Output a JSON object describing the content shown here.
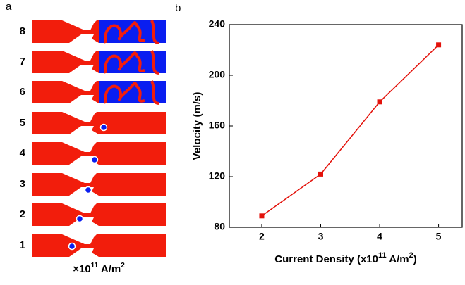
{
  "panel_a": {
    "label": "a",
    "rows": [
      "8",
      "7",
      "6",
      "5",
      "4",
      "3",
      "2",
      "1"
    ],
    "unit": [
      "×10",
      "11",
      " A/m",
      "2"
    ]
  },
  "panel_b": {
    "label": "b"
  },
  "chart_data": {
    "type": "line",
    "xlabel": [
      "Current Density (x10",
      "11",
      " A/m",
      "2",
      ")"
    ],
    "ylabel": "Velocity (m/s)",
    "x": [
      2,
      3,
      4,
      5
    ],
    "series": [
      {
        "color": "#e3120b",
        "values": [
          89,
          122,
          179,
          224
        ]
      }
    ],
    "xlim": [
      1.45,
      5.4
    ],
    "xticks": [
      2,
      3,
      4,
      5
    ],
    "ylim": [
      80,
      240
    ],
    "yticks": [
      80,
      120,
      160,
      200,
      240
    ],
    "marker": "square"
  }
}
